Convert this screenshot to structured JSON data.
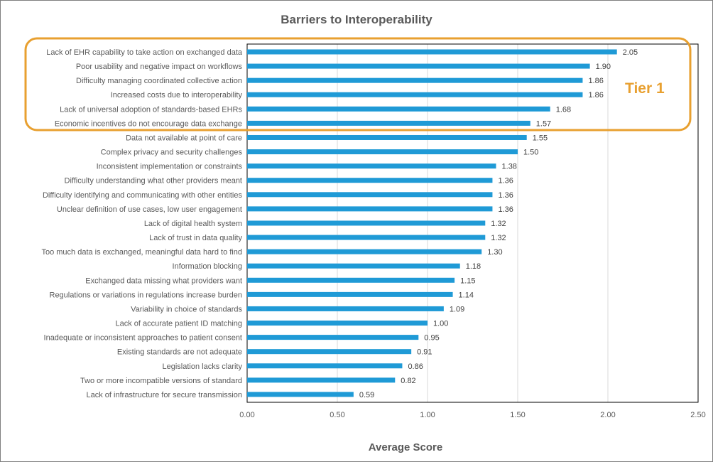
{
  "chart_data": {
    "type": "bar",
    "orientation": "horizontal",
    "title": "Barriers to Interoperability",
    "xlabel": "Average Score",
    "ylabel": "",
    "xlim": [
      0,
      2.5
    ],
    "xticks": [
      "0.00",
      "0.50",
      "1.00",
      "1.50",
      "2.00",
      "2.50"
    ],
    "grid": "vertical",
    "bar_color": "#1F9AD6",
    "categories": [
      "Lack of EHR capability to take action on exchanged data",
      "Poor usability and negative impact on workflows",
      "Difficulty managing coordinated collective action",
      "Increased costs due to interoperability",
      "Lack of universal adoption of standards-based EHRs",
      "Economic incentives do not encourage data exchange",
      "Data not available at point of care",
      "Complex privacy and security challenges",
      "Inconsistent implementation or constraints",
      "Difficulty understanding what other providers meant",
      "Difficulty identifying and communicating with other entities",
      "Unclear definition of use cases, low user engagement",
      "Lack of digital health system",
      "Lack of trust in data quality",
      "Too much data is exchanged, meaningful data hard to find",
      "Information blocking",
      "Exchanged data missing what providers want",
      "Regulations or variations in regulations increase burden",
      "Variability in choice of standards",
      "Lack of accurate patient ID matching",
      "Inadequate or inconsistent approaches to patient consent",
      "Existing standards are not adequate",
      "Legislation lacks clarity",
      "Two or more incompatible versions of standard",
      "Lack of infrastructure for secure transmission"
    ],
    "values": [
      2.05,
      1.9,
      1.86,
      1.86,
      1.68,
      1.57,
      1.55,
      1.5,
      1.38,
      1.36,
      1.36,
      1.36,
      1.32,
      1.32,
      1.3,
      1.18,
      1.15,
      1.14,
      1.09,
      1.0,
      0.95,
      0.91,
      0.86,
      0.82,
      0.59
    ],
    "value_labels": [
      "2.05",
      "1.90",
      "1.86",
      "1.86",
      "1.68",
      "1.57",
      "1.55",
      "1.50",
      "1.38",
      "1.36",
      "1.36",
      "1.36",
      "1.32",
      "1.32",
      "1.30",
      "1.18",
      "1.15",
      "1.14",
      "1.09",
      "1.00",
      "0.95",
      "0.91",
      "0.86",
      "0.82",
      "0.59"
    ],
    "annotations": [
      {
        "text": "Tier 1",
        "highlight_categories_count": 6,
        "color": "#E8A030"
      }
    ]
  }
}
